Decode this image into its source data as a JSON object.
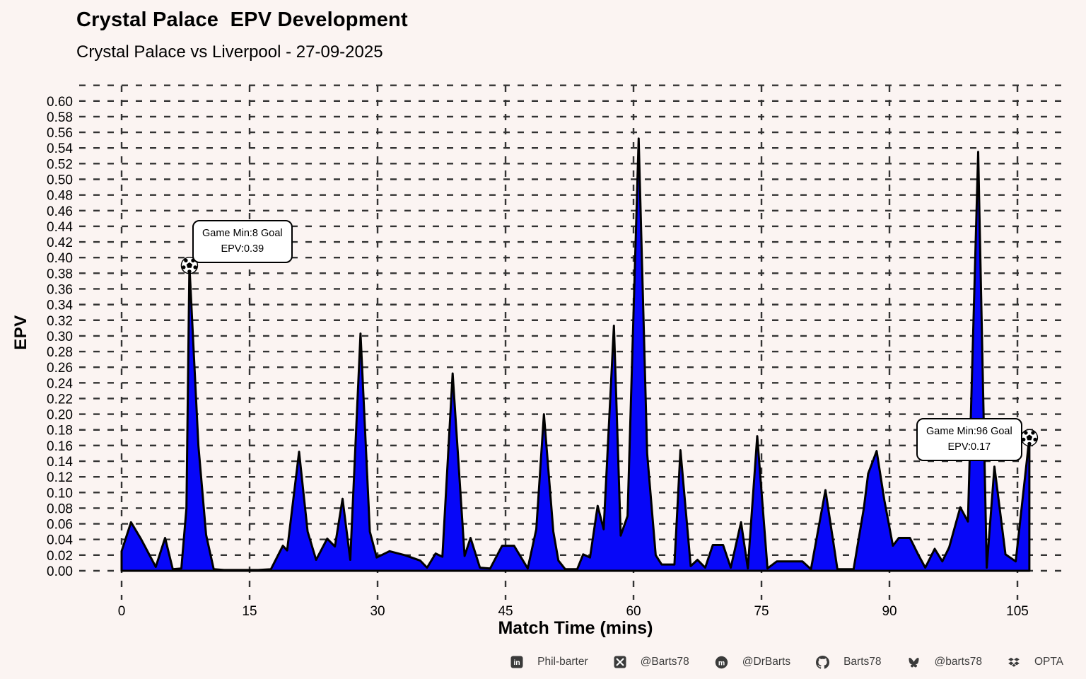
{
  "header": {
    "title": "Crystal Palace  EPV Development",
    "subtitle": "Crystal Palace vs Liverpool - 27-09-2025"
  },
  "chart_data": {
    "type": "area",
    "title": "Crystal Palace  EPV Development",
    "subtitle": "Crystal Palace vs Liverpool - 27-09-2025",
    "xlabel": "Match Time (mins)",
    "ylabel": "EPV",
    "xticks": [
      0,
      15,
      30,
      45,
      60,
      75,
      90,
      105
    ],
    "xlim": [
      0,
      106.4
    ],
    "ylim": [
      0,
      0.6
    ],
    "ytick_step": 0.02,
    "grid": "dashed",
    "legend": "none",
    "series": [
      {
        "name": "Crystal Palace EPV",
        "points": [
          [
            0,
            0.025
          ],
          [
            1.1,
            0.062
          ],
          [
            2.3,
            0.04
          ],
          [
            4.0,
            0.005
          ],
          [
            5.1,
            0.042
          ],
          [
            6.0,
            0.002
          ],
          [
            7.0,
            0.003
          ],
          [
            7.6,
            0.08
          ],
          [
            7.95,
            0.39
          ],
          [
            9.0,
            0.16
          ],
          [
            9.9,
            0.046
          ],
          [
            10.8,
            0.002
          ],
          [
            12.0,
            0.001
          ],
          [
            16.0,
            0.001
          ],
          [
            17.5,
            0.002
          ],
          [
            18.9,
            0.032
          ],
          [
            19.4,
            0.026
          ],
          [
            20.8,
            0.152
          ],
          [
            21.8,
            0.05
          ],
          [
            22.8,
            0.014
          ],
          [
            24.1,
            0.041
          ],
          [
            25.0,
            0.031
          ],
          [
            25.9,
            0.092
          ],
          [
            26.8,
            0.014
          ],
          [
            28.0,
            0.303
          ],
          [
            29.1,
            0.05
          ],
          [
            29.9,
            0.017
          ],
          [
            31.4,
            0.025
          ],
          [
            33.2,
            0.02
          ],
          [
            35.0,
            0.013
          ],
          [
            35.8,
            0.004
          ],
          [
            36.8,
            0.022
          ],
          [
            37.6,
            0.018
          ],
          [
            38.8,
            0.252
          ],
          [
            40.2,
            0.019
          ],
          [
            40.9,
            0.042
          ],
          [
            42.0,
            0.004
          ],
          [
            43.2,
            0.003
          ],
          [
            44.6,
            0.032
          ],
          [
            46.0,
            0.032
          ],
          [
            47.6,
            0.003
          ],
          [
            48.6,
            0.053
          ],
          [
            49.5,
            0.2
          ],
          [
            50.6,
            0.05
          ],
          [
            51.2,
            0.013
          ],
          [
            52.0,
            0.002
          ],
          [
            53.4,
            0.002
          ],
          [
            54.1,
            0.021
          ],
          [
            54.9,
            0.017
          ],
          [
            55.8,
            0.083
          ],
          [
            56.5,
            0.053
          ],
          [
            57.7,
            0.313
          ],
          [
            58.5,
            0.045
          ],
          [
            59.3,
            0.07
          ],
          [
            60.6,
            0.552
          ],
          [
            61.6,
            0.15
          ],
          [
            62.6,
            0.02
          ],
          [
            63.3,
            0.008
          ],
          [
            64.8,
            0.008
          ],
          [
            65.5,
            0.154
          ],
          [
            66.7,
            0.006
          ],
          [
            67.5,
            0.014
          ],
          [
            68.4,
            0.004
          ],
          [
            69.3,
            0.033
          ],
          [
            70.5,
            0.033
          ],
          [
            71.4,
            0.004
          ],
          [
            72.6,
            0.062
          ],
          [
            73.4,
            0.003
          ],
          [
            74.5,
            0.172
          ],
          [
            75.7,
            0.003
          ],
          [
            76.8,
            0.012
          ],
          [
            79.8,
            0.012
          ],
          [
            80.8,
            0.002
          ],
          [
            82.5,
            0.103
          ],
          [
            83.9,
            0.002
          ],
          [
            85.8,
            0.002
          ],
          [
            87.0,
            0.08
          ],
          [
            87.5,
            0.124
          ],
          [
            88.5,
            0.153
          ],
          [
            89.4,
            0.09
          ],
          [
            90.4,
            0.032
          ],
          [
            91.1,
            0.042
          ],
          [
            92.4,
            0.042
          ],
          [
            93.4,
            0.02
          ],
          [
            94.2,
            0.004
          ],
          [
            95.3,
            0.028
          ],
          [
            96.2,
            0.012
          ],
          [
            97.0,
            0.03
          ],
          [
            98.3,
            0.081
          ],
          [
            99.2,
            0.063
          ],
          [
            100.4,
            0.535
          ],
          [
            101.4,
            0.004
          ],
          [
            102.3,
            0.133
          ],
          [
            103.6,
            0.021
          ],
          [
            104.8,
            0.012
          ],
          [
            106.4,
            0.17
          ]
        ]
      }
    ],
    "goals": [
      {
        "game_minute": 8,
        "epv": 0.39,
        "marker_x": 7.95,
        "marker_y": 0.39
      },
      {
        "game_minute": 96,
        "epv": 0.17,
        "marker_x": 106.4,
        "marker_y": 0.17
      }
    ]
  },
  "annotations": [
    {
      "line1": "Game Min:8 Goal",
      "line2": "EPV:0.39"
    },
    {
      "line1": "Game Min:96 Goal",
      "line2": "EPV:0.17"
    }
  ],
  "axes": {
    "xlabel": "Match Time (mins)",
    "ylabel": "EPV"
  },
  "footer": {
    "items": [
      {
        "icon": "linkedin-icon",
        "label": "Phil-barter"
      },
      {
        "icon": "x-icon",
        "label": "@Barts78"
      },
      {
        "icon": "mastodon-icon",
        "label": "@DrBarts"
      },
      {
        "icon": "github-icon",
        "label": "Barts78"
      },
      {
        "icon": "bluesky-icon",
        "label": "@barts78"
      },
      {
        "icon": "opta-icon",
        "label": "OPTA"
      }
    ]
  },
  "colors": {
    "background": "#FBF4F2",
    "area_fill": "#0707F8",
    "area_edge": "#000000",
    "grid": "#333333",
    "annotation_bg": "#FFFFFF",
    "footer_text": "#3D3D3D"
  }
}
